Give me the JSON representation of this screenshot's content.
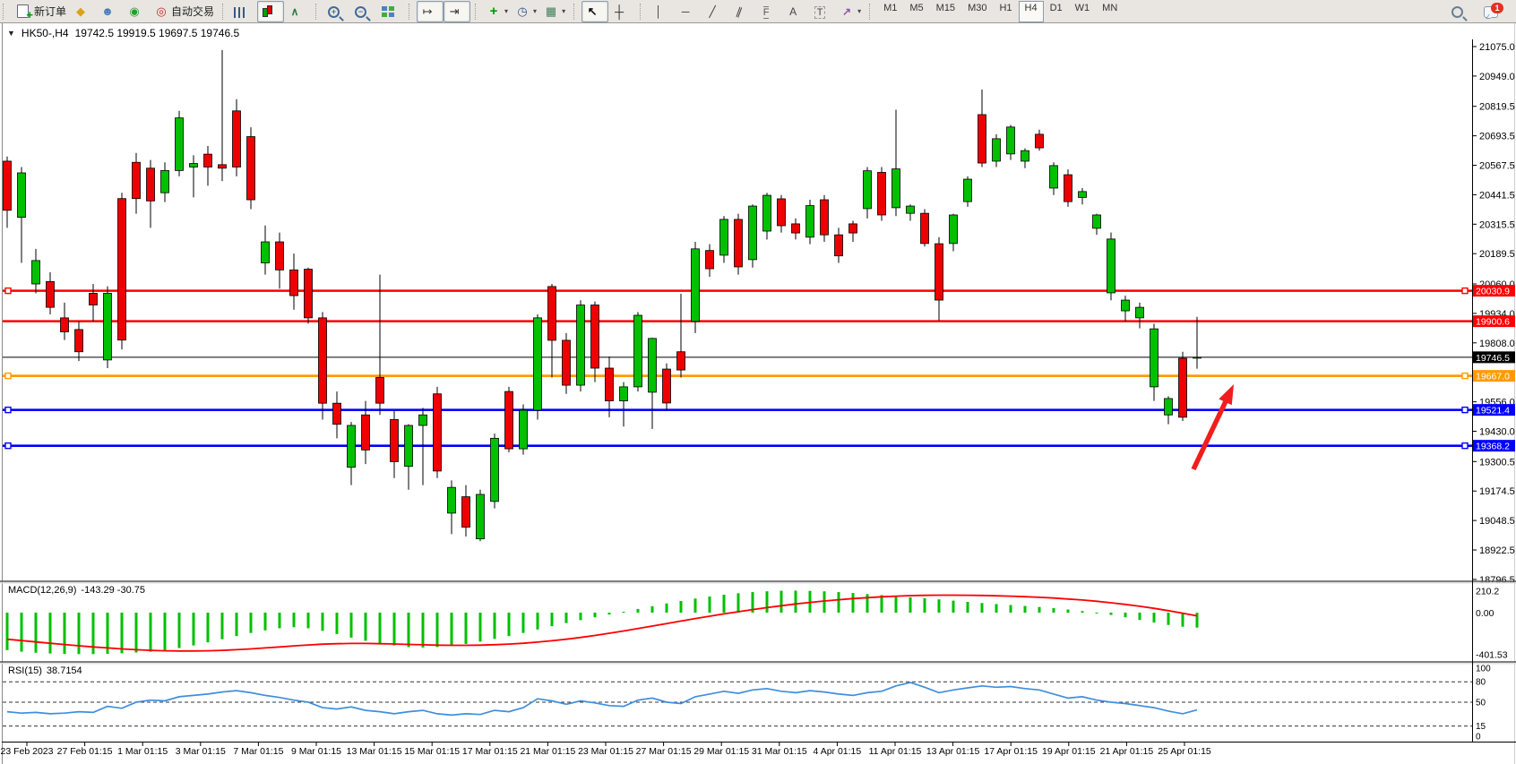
{
  "toolbar": {
    "groups": [
      {
        "name": "trade",
        "items": [
          {
            "name": "new-order-button",
            "icon": "doc-plus-icon",
            "label": "新订单"
          },
          {
            "name": "quotes-button",
            "icon": "gold-gem-icon"
          },
          {
            "name": "data-window-button",
            "icon": "person-icon"
          },
          {
            "name": "signals-button",
            "icon": "signal-icon"
          },
          {
            "name": "autotrading-button",
            "icon": "autotrade-icon",
            "label": "自动交易"
          }
        ]
      },
      {
        "name": "chart-type",
        "items": [
          {
            "name": "bars-button",
            "icon": "bars-icon"
          },
          {
            "name": "candles-button",
            "icon": "candles-icon",
            "selected": true
          },
          {
            "name": "line-chart-button",
            "icon": "line-chart-icon"
          }
        ]
      },
      {
        "name": "zoom",
        "items": [
          {
            "name": "zoom-in-button",
            "icon": "zoom-in-icon"
          },
          {
            "name": "zoom-out-button",
            "icon": "zoom-out-icon"
          },
          {
            "name": "tile-windows-button",
            "icon": "tile-windows-icon"
          }
        ]
      },
      {
        "name": "scroll",
        "items": [
          {
            "name": "auto-scroll-button",
            "icon": "auto-scroll-icon",
            "selected": true
          },
          {
            "name": "chart-shift-button",
            "icon": "chart-shift-icon",
            "selected": true
          }
        ]
      },
      {
        "name": "insert",
        "items": [
          {
            "name": "indicators-button",
            "icon": "indicator-plus-icon",
            "dropdown": true
          },
          {
            "name": "periods-button",
            "icon": "clock-icon",
            "dropdown": true
          },
          {
            "name": "templates-button",
            "icon": "template-icon",
            "dropdown": true
          }
        ]
      },
      {
        "name": "pointer",
        "items": [
          {
            "name": "cursor-button",
            "icon": "cursor-icon",
            "selected": true
          },
          {
            "name": "crosshair-button",
            "icon": "crosshair-icon"
          }
        ]
      },
      {
        "name": "objects",
        "items": [
          {
            "name": "vertical-line-button",
            "icon": "vline-icon"
          },
          {
            "name": "horizontal-line-button",
            "icon": "hline-icon"
          },
          {
            "name": "trendline-button",
            "icon": "trendline-icon"
          },
          {
            "name": "equidistant-channel-button",
            "icon": "channel-icon"
          },
          {
            "name": "fibonacci-button",
            "icon": "fibo-icon"
          },
          {
            "name": "text-button",
            "icon": "text-a-icon"
          },
          {
            "name": "label-button",
            "icon": "label-t-icon"
          },
          {
            "name": "arrows-button",
            "icon": "arrows-icon",
            "dropdown": true
          }
        ]
      },
      {
        "name": "timeframes",
        "timeframe_style": true,
        "items": [
          {
            "name": "tf-m1-button",
            "label": "M1"
          },
          {
            "name": "tf-m5-button",
            "label": "M5"
          },
          {
            "name": "tf-m15-button",
            "label": "M15"
          },
          {
            "name": "tf-m30-button",
            "label": "M30"
          },
          {
            "name": "tf-h1-button",
            "label": "H1"
          },
          {
            "name": "tf-h4-button",
            "label": "H4",
            "selected": true
          },
          {
            "name": "tf-d1-button",
            "label": "D1"
          },
          {
            "name": "tf-w1-button",
            "label": "W1"
          },
          {
            "name": "tf-mn-button",
            "label": "MN"
          }
        ]
      }
    ],
    "right": [
      {
        "name": "search-button",
        "icon": "magnifier-icon"
      },
      {
        "name": "chat-button",
        "icon": "chat-icon",
        "badge": "1"
      }
    ]
  },
  "chart_data": {
    "type": "candlestick",
    "title": {
      "symbol": "HK50-,H4",
      "ohlc": "19742.5 19919.5 19697.5 19746.5"
    },
    "price_axis_ticks": [
      "21075.0",
      "20949.0",
      "20819.5",
      "20693.5",
      "20567.5",
      "20441.5",
      "20315.5",
      "20189.5",
      "20060.0",
      "19934.0",
      "19808.0",
      "19556.0",
      "19430.0",
      "19300.5",
      "19174.5",
      "19048.5",
      "18922.5",
      "18796.5"
    ],
    "levels": [
      {
        "label": "20030.9",
        "price": 20030.9,
        "color": "#ff0000",
        "width": 2.4,
        "anchors": true
      },
      {
        "label": "19900.6",
        "price": 19900.6,
        "color": "#ff0000",
        "width": 2.4,
        "anchors": false
      },
      {
        "label": "19746.5",
        "price": 19746.5,
        "color": "#000000",
        "width": 1,
        "anchors": false
      },
      {
        "label": "19667.0",
        "price": 19667.0,
        "color": "#ff9b00",
        "width": 2.8,
        "anchors": true
      },
      {
        "label": "19521.4",
        "price": 19521.4,
        "color": "#0000ff",
        "width": 2.6,
        "anchors": true
      },
      {
        "label": "19368.2",
        "price": 19368.2,
        "color": "#0000ff",
        "width": 2.6,
        "anchors": true
      }
    ],
    "candles": [
      [
        20585,
        20605,
        20300,
        20375
      ],
      [
        20345,
        20560,
        20150,
        20535
      ],
      [
        20060,
        20210,
        20020,
        20160
      ],
      [
        20070,
        20110,
        19930,
        19960
      ],
      [
        19915,
        19980,
        19820,
        19855
      ],
      [
        19865,
        19900,
        19730,
        19770
      ],
      [
        20020,
        20060,
        19900,
        19970
      ],
      [
        19735,
        20050,
        19700,
        20020
      ],
      [
        20425,
        20450,
        19780,
        19820
      ],
      [
        20580,
        20620,
        20360,
        20425
      ],
      [
        20555,
        20590,
        20300,
        20415
      ],
      [
        20450,
        20580,
        20410,
        20545
      ],
      [
        20545,
        20800,
        20520,
        20770
      ],
      [
        20560,
        20610,
        20430,
        20575
      ],
      [
        20615,
        20650,
        20480,
        20560
      ],
      [
        20570,
        21060,
        20500,
        20555
      ],
      [
        20800,
        20850,
        20520,
        20560
      ],
      [
        20690,
        20730,
        20380,
        20420
      ],
      [
        20150,
        20310,
        20100,
        20240
      ],
      [
        20240,
        20280,
        20040,
        20120
      ],
      [
        20120,
        20190,
        19950,
        20010
      ],
      [
        20123,
        20130,
        19890,
        19915
      ],
      [
        19915,
        19940,
        19480,
        19550
      ],
      [
        19550,
        19600,
        19400,
        19460
      ],
      [
        19276,
        19470,
        19200,
        19455
      ],
      [
        19500,
        19560,
        19290,
        19350
      ],
      [
        19660,
        20100,
        19500,
        19550
      ],
      [
        19480,
        19520,
        19230,
        19300
      ],
      [
        19280,
        19460,
        19180,
        19455
      ],
      [
        19455,
        19530,
        19200,
        19500
      ],
      [
        19590,
        19620,
        19230,
        19260
      ],
      [
        19080,
        19220,
        18990,
        19190
      ],
      [
        19150,
        19200,
        18980,
        19020
      ],
      [
        18970,
        19180,
        18960,
        19160
      ],
      [
        19130,
        19420,
        19100,
        19400
      ],
      [
        19600,
        19620,
        19340,
        19355
      ],
      [
        19355,
        19545,
        19330,
        19520
      ],
      [
        19520,
        19930,
        19480,
        19915
      ],
      [
        20049,
        20060,
        19660,
        19819
      ],
      [
        19819,
        19850,
        19590,
        19627
      ],
      [
        19627,
        19990,
        19600,
        19970
      ],
      [
        19970,
        19985,
        19640,
        19700
      ],
      [
        19700,
        19750,
        19490,
        19560
      ],
      [
        19560,
        19640,
        19450,
        19620
      ],
      [
        19620,
        19940,
        19600,
        19926
      ],
      [
        19597,
        19830,
        19440,
        19827
      ],
      [
        19696,
        19720,
        19520,
        19551
      ],
      [
        19770,
        20018,
        19660,
        19692
      ],
      [
        19900,
        20240,
        19850,
        20210
      ],
      [
        20203,
        20230,
        20090,
        20125
      ],
      [
        20183,
        20350,
        20150,
        20336
      ],
      [
        20336,
        20360,
        20100,
        20133
      ],
      [
        20164,
        20400,
        20130,
        20393
      ],
      [
        20286,
        20450,
        20250,
        20439
      ],
      [
        20424,
        20440,
        20280,
        20309
      ],
      [
        20317,
        20340,
        20250,
        20278
      ],
      [
        20260,
        20420,
        20230,
        20395
      ],
      [
        20420,
        20440,
        20240,
        20270
      ],
      [
        20270,
        20300,
        20150,
        20180
      ],
      [
        20317,
        20330,
        20240,
        20278
      ],
      [
        20382,
        20560,
        20340,
        20544
      ],
      [
        20537,
        20560,
        20330,
        20355
      ],
      [
        20386,
        20805,
        20350,
        20552
      ],
      [
        20362,
        20400,
        20330,
        20393
      ],
      [
        20362,
        20380,
        20220,
        20233
      ],
      [
        20232,
        20260,
        19903,
        19991
      ],
      [
        20233,
        20360,
        20200,
        20355
      ],
      [
        20412,
        20520,
        20390,
        20508
      ],
      [
        20784,
        20891,
        20560,
        20577
      ],
      [
        20585,
        20700,
        20560,
        20681
      ],
      [
        20616,
        20740,
        20590,
        20731
      ],
      [
        20585,
        20640,
        20555,
        20630
      ],
      [
        20700,
        20720,
        20630,
        20642
      ],
      [
        20470,
        20580,
        20440,
        20566
      ],
      [
        20527,
        20550,
        20390,
        20412
      ],
      [
        20430,
        20470,
        20400,
        20455
      ],
      [
        20298,
        20360,
        20270,
        20355
      ],
      [
        20022,
        20280,
        19990,
        20252
      ],
      [
        19945,
        20010,
        19900,
        19991
      ],
      [
        19915,
        19980,
        19870,
        19960
      ],
      [
        19620,
        19890,
        19560,
        19868
      ],
      [
        19500,
        19580,
        19460,
        19570
      ],
      [
        19742,
        19770,
        19474,
        19490
      ],
      [
        19742.5,
        19919.5,
        19697.5,
        19746.5
      ]
    ],
    "indicators": {
      "macd": {
        "label": "MACD(12,26,9)",
        "values_text": "-143.29 -30.75",
        "scale_labels": [
          {
            "text": "210.2",
            "v": 210.2
          },
          {
            "text": "0.00",
            "v": 0
          },
          {
            "text": "-401.53",
            "v": -401.53
          }
        ],
        "histogram": [
          -360,
          -375,
          -385,
          -392,
          -396,
          -398,
          -398,
          -395,
          -390,
          -383,
          -375,
          -360,
          -340,
          -315,
          -285,
          -255,
          -225,
          -195,
          -170,
          -150,
          -140,
          -150,
          -175,
          -205,
          -240,
          -270,
          -295,
          -315,
          -330,
          -335,
          -330,
          -318,
          -300,
          -278,
          -252,
          -225,
          -195,
          -162,
          -130,
          -100,
          -72,
          -45,
          -18,
          8,
          35,
          62,
          88,
          112,
          135,
          155,
          172,
          186,
          197,
          205,
          210,
          211,
          209,
          204,
          197,
          188,
          178,
          168,
          158,
          148,
          138,
          127,
          115,
          103,
          92,
          82,
          73,
          64,
          54,
          43,
          30,
          15,
          -2,
          -22,
          -45,
          -70,
          -95,
          -118,
          -135,
          -143.29
        ],
        "signal": [
          -255,
          -268,
          -281,
          -294,
          -306,
          -318,
          -329,
          -339,
          -348,
          -356,
          -362,
          -366,
          -368,
          -368,
          -366,
          -362,
          -356,
          -348,
          -339,
          -329,
          -319,
          -310,
          -303,
          -298,
          -296,
          -296,
          -298,
          -301,
          -305,
          -309,
          -312,
          -314,
          -314,
          -312,
          -308,
          -302,
          -294,
          -283,
          -270,
          -255,
          -238,
          -219,
          -198,
          -176,
          -153,
          -129,
          -105,
          -81,
          -57,
          -34,
          -12,
          9,
          29,
          48,
          66,
          83,
          98,
          112,
          124,
          135,
          144,
          152,
          158,
          163,
          166,
          168,
          168,
          167,
          165,
          162,
          158,
          153,
          147,
          140,
          131,
          121,
          109,
          95,
          79,
          61,
          41,
          19,
          -5,
          -30.75
        ]
      },
      "rsi": {
        "label": "RSI(15)",
        "value_text": "38.7154",
        "scale_labels": [
          {
            "text": "100",
            "v": 100
          },
          {
            "text": "80",
            "v": 80
          },
          {
            "text": "50",
            "v": 50
          },
          {
            "text": "15",
            "v": 15
          },
          {
            "text": "0",
            "v": 0
          }
        ],
        "levels": [
          80,
          50,
          15
        ],
        "series": [
          36,
          34,
          35,
          33,
          34,
          36,
          35,
          44,
          41,
          50,
          53,
          52,
          58,
          60,
          62,
          65,
          67,
          64,
          60,
          57,
          53,
          50,
          42,
          40,
          43,
          38,
          36,
          33,
          36,
          38,
          33,
          31,
          33,
          32,
          38,
          36,
          42,
          55,
          52,
          47,
          52,
          49,
          45,
          44,
          53,
          56,
          50,
          48,
          58,
          62,
          66,
          63,
          68,
          70,
          66,
          64,
          67,
          65,
          62,
          60,
          64,
          66,
          74,
          79,
          72,
          64,
          68,
          71,
          74,
          72,
          73,
          70,
          68,
          62,
          56,
          58,
          53,
          50,
          48,
          45,
          42,
          37,
          33,
          38.7
        ]
      }
    },
    "time_axis_labels": [
      "23 Feb 2023",
      "27 Feb 01:15",
      "1 Mar 01:15",
      "3 Mar 01:15",
      "7 Mar 01:15",
      "9 Mar 01:15",
      "13 Mar 01:15",
      "15 Mar 01:15",
      "17 Mar 01:15",
      "21 Mar 01:15",
      "23 Mar 01:15",
      "27 Mar 01:15",
      "29 Mar 01:15",
      "31 Mar 01:15",
      "4 Apr 01:15",
      "11 Apr 01:15",
      "13 Apr 01:15",
      "17 Apr 01:15",
      "19 Apr 01:15",
      "21 Apr 01:15",
      "25 Apr 01:15"
    ],
    "annotation_arrow": {
      "from": {
        "x": 1332,
        "y": 524
      },
      "to": {
        "x": 1377,
        "y": 429
      },
      "color": "#f01e1e"
    },
    "colors": {
      "bull": "#00c000",
      "bear": "#ef0000",
      "wick": "#000000",
      "macd_histogram": "#00c000",
      "macd_signal": "#ff0000",
      "rsi_line": "#3e8ede",
      "axis_text": "#000000",
      "background": "#ffffff"
    }
  }
}
